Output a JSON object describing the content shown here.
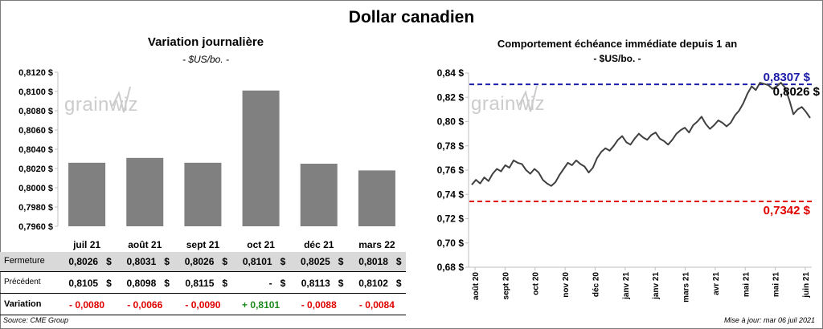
{
  "title": "Dollar canadien",
  "source": "Source: CME Group",
  "update": "Mise à jour: mar 06 juil 2021",
  "colors": {
    "bar": "#808080",
    "line": "#404040",
    "high": "#1c1ca8",
    "low": "#e00000",
    "neg": "#e00000",
    "pos": "#1a8a1a"
  },
  "left": {
    "title": "Variation  journalière",
    "subtitle": "- $US/bo. -",
    "table": {
      "fermeture_label": "Fermeture",
      "precedent_label": "Précédent",
      "variation_label": "Variation",
      "fermeture": [
        "0,8026",
        "0,8031",
        "0,8026",
        "0,8101",
        "0,8025",
        "0,8018"
      ],
      "precedent": [
        "0,8105",
        "0,8098",
        "0,8115",
        "-",
        "0,8113",
        "0,8102"
      ],
      "variation": [
        "- 0,0080",
        "- 0,0066",
        "- 0,0090",
        "+ 0,8101",
        "- 0,0088",
        "- 0,0084"
      ],
      "currency": "$"
    }
  },
  "right": {
    "title": "Comportement échéance immédiate depuis 1 an",
    "subtitle": "- $US/bo. -"
  },
  "chart_data": [
    {
      "type": "bar",
      "title": "Variation  journalière",
      "subtitle": "- $US/bo. -",
      "categories": [
        "juil 21",
        "août 21",
        "sept 21",
        "oct 21",
        "déc 21",
        "mars 22"
      ],
      "values": [
        0.8026,
        0.8031,
        0.8026,
        0.8101,
        0.8025,
        0.8018
      ],
      "ylim": [
        0.796,
        0.812
      ],
      "yticks": [
        "0,7960 $",
        "0,7980 $",
        "0,8000 $",
        "0,8020 $",
        "0,8040 $",
        "0,8060 $",
        "0,8080 $",
        "0,8100 $",
        "0,8120 $"
      ],
      "grid": false
    },
    {
      "type": "line",
      "title": "Comportement échéance immédiate depuis 1 an",
      "subtitle": "- $US/bo. -",
      "ylim": [
        0.68,
        0.84
      ],
      "yticks": [
        "0,68 $",
        "0,70 $",
        "0,72 $",
        "0,74 $",
        "0,76 $",
        "0,78 $",
        "0,80 $",
        "0,82 $",
        "0,84 $"
      ],
      "xticks": [
        "août 20",
        "sept 20",
        "oct 20",
        "nov 20",
        "déc 20",
        "janv 21",
        "janv 21",
        "mars 21",
        "avr 21",
        "mai 21",
        "mai 21",
        "juin 21"
      ],
      "series": [
        {
          "values": [
            0.748,
            0.752,
            0.749,
            0.754,
            0.751,
            0.757,
            0.761,
            0.759,
            0.764,
            0.762,
            0.768,
            0.766,
            0.765,
            0.76,
            0.757,
            0.761,
            0.758,
            0.752,
            0.749,
            0.747,
            0.75,
            0.756,
            0.761,
            0.766,
            0.764,
            0.768,
            0.765,
            0.763,
            0.758,
            0.762,
            0.77,
            0.775,
            0.778,
            0.776,
            0.78,
            0.785,
            0.788,
            0.783,
            0.781,
            0.786,
            0.79,
            0.787,
            0.785,
            0.789,
            0.791,
            0.786,
            0.784,
            0.781,
            0.785,
            0.79,
            0.793,
            0.795,
            0.791,
            0.797,
            0.8,
            0.804,
            0.798,
            0.794,
            0.797,
            0.801,
            0.799,
            0.796,
            0.799,
            0.805,
            0.809,
            0.815,
            0.823,
            0.829,
            0.826,
            0.832,
            0.831,
            0.83,
            0.827,
            0.829,
            0.832,
            0.828,
            0.818,
            0.806,
            0.81,
            0.812,
            0.808,
            0.803
          ]
        }
      ],
      "reference_lines": [
        {
          "value": 0.8307,
          "label": "0,8307 $",
          "color": "#1c1ca8"
        },
        {
          "value": 0.7342,
          "label": "0,7342 $",
          "color": "#e00000"
        }
      ],
      "last_value_label": "0,8026 $",
      "watermark": "grainwiz"
    }
  ]
}
